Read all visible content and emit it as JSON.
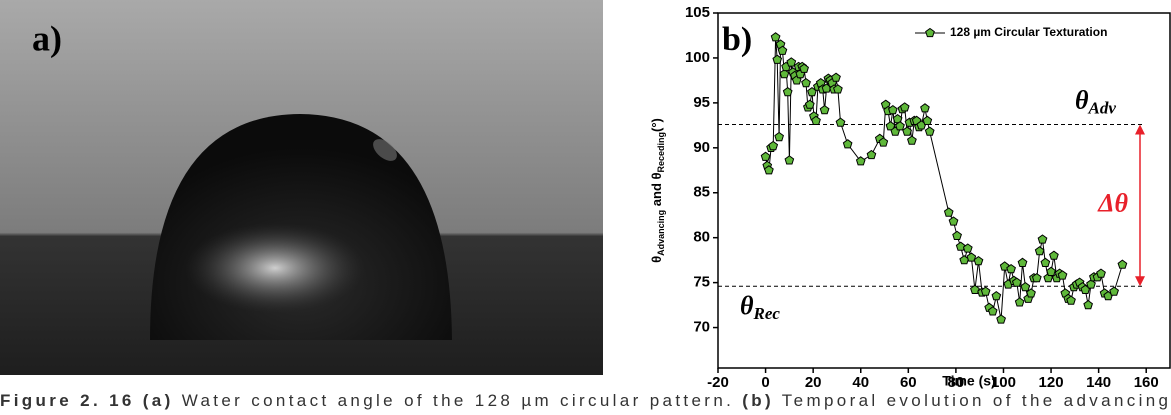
{
  "panel_a": {
    "label": "a)"
  },
  "chart_data": {
    "type": "line",
    "panel_label": "b)",
    "x_label": "Time (s)",
    "y_label": [
      "θ",
      "Advancing",
      " and θ",
      "Receding",
      "(°)"
    ],
    "xlim": [
      -20,
      170
    ],
    "xticks": [
      -20,
      0,
      20,
      40,
      60,
      80,
      100,
      120,
      140,
      160
    ],
    "ylim": [
      65.5,
      105
    ],
    "yticks": [
      70,
      75,
      80,
      85,
      90,
      95,
      100,
      105
    ],
    "legend": "top-right",
    "series": [
      {
        "name": "128 µm Circular Texturation",
        "color": "#5fb83a",
        "x": [
          0,
          0.7,
          1.4,
          2.3,
          3.2,
          4.2,
          4.9,
          5.7,
          6.3,
          7.1,
          7.9,
          8.6,
          9.3,
          10,
          10.8,
          11.5,
          12.3,
          13.1,
          13.9,
          14.6,
          15.4,
          16.2,
          17,
          17.8,
          18.6,
          19.5,
          20.3,
          21.2,
          22,
          23.2,
          24,
          24.8,
          25.6,
          26.4,
          27.2,
          28,
          28.8,
          29.6,
          30.4,
          31.5,
          34.5,
          40,
          44.5,
          48,
          49.5,
          50.5,
          51.5,
          52.5,
          53.5,
          54.5,
          55.5,
          56.5,
          57.5,
          58.5,
          59.5,
          60.5,
          61.5,
          62.5,
          63.5,
          64.5,
          65.5,
          67,
          68,
          69,
          77,
          79,
          80.5,
          82,
          83.5,
          85,
          86.5,
          88,
          89.5,
          91,
          92.5,
          94,
          95.5,
          97,
          99,
          100.5,
          102,
          103.2,
          104.4,
          105.6,
          106.8,
          108,
          109.2,
          110.4,
          111.6,
          112.8,
          114,
          115.2,
          116.4,
          117.6,
          118.8,
          120,
          121.2,
          122.4,
          123.6,
          124.8,
          126,
          127.2,
          128.4,
          129.6,
          130.8,
          132,
          133.2,
          134.4,
          135.6,
          136.8,
          138,
          139.5,
          141,
          142.5,
          144,
          146.5,
          150
        ],
        "values": [
          89,
          88,
          87.5,
          90,
          90.2,
          102.3,
          99.8,
          91.2,
          101.5,
          100.8,
          98.2,
          99,
          96.2,
          88.6,
          99.5,
          98.4,
          98,
          97.5,
          99,
          98.2,
          99,
          98.8,
          97.2,
          94.5,
          94.8,
          96.2,
          93.5,
          93,
          96.8,
          97.2,
          96.5,
          94.2,
          96.6,
          97.7,
          97.5,
          97.2,
          96.5,
          97.8,
          96.5,
          92.8,
          90.4,
          88.5,
          89.2,
          91,
          90.6,
          94.8,
          94.1,
          92.4,
          94.2,
          91.8,
          93.2,
          92.4,
          94.3,
          94.5,
          91.8,
          92.8,
          90.8,
          93,
          93,
          92.3,
          92.5,
          94.4,
          93,
          91.8,
          82.8,
          81.8,
          80.2,
          79,
          77.5,
          78.8,
          77.8,
          74.2,
          77.4,
          73.9,
          74,
          72.2,
          71.8,
          73.5,
          70.9,
          76.8,
          74.8,
          76.5,
          75.2,
          75,
          72.8,
          77.2,
          74.5,
          73.2,
          73.8,
          75.5,
          75.5,
          78.5,
          79.8,
          77.2,
          75.5,
          76.2,
          78,
          75.5,
          76,
          75.8,
          73.8,
          73.2,
          73,
          74.5,
          74.8,
          75,
          74.5,
          74.2,
          72.5,
          74.8,
          75.6,
          75.6,
          76,
          73.8,
          73.5,
          74,
          77
        ]
      }
    ],
    "reference_lines": [
      {
        "value": 92.6,
        "label": [
          "θ",
          "Adv"
        ]
      },
      {
        "value": 74.6,
        "label": [
          "θ",
          "Rec"
        ]
      }
    ],
    "difference_label": "Δθ"
  },
  "caption": [
    {
      "text": "Figure 2. 16 (a)",
      "bold": true
    },
    {
      "text": " Water contact angle of the 128 µm circular pattern. ",
      "bold": false
    },
    {
      "text": "(b)",
      "bold": true
    },
    {
      "text": " Temporal evolution of the advancing",
      "bold": false
    }
  ]
}
